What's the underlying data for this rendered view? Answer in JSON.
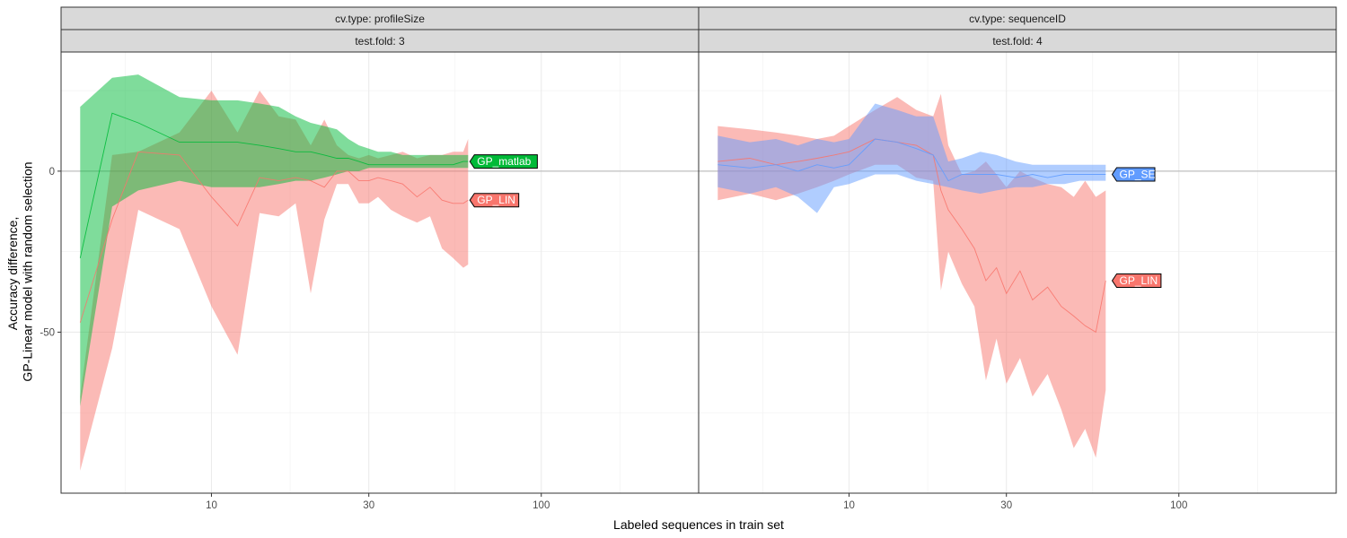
{
  "chart_data": {
    "type": "area",
    "xlabel": "Labeled sequences in train set",
    "ylabel_lines": [
      "Accuracy difference,",
      "GP-Linear model with random selection"
    ],
    "x_scale": "log10",
    "x_ticks": [
      10,
      30,
      100
    ],
    "y_ticks": [
      0,
      -50
    ],
    "xlim": [
      3.5,
      300
    ],
    "ylim": [
      -100,
      37
    ],
    "grid": true,
    "legend": "direct labels at line ends",
    "colors": {
      "GP_LIN": "#F8766D",
      "GP_matlab": "#00BA38",
      "GP_SE": "#619CFF"
    },
    "panels": [
      {
        "strip_top": "cv.type: profileSize",
        "strip_bottom": "test.fold: 3",
        "series": [
          {
            "name": "GP_LIN",
            "x": [
              4,
              5,
              6,
              8,
              10,
              12,
              14,
              16,
              18,
              20,
              22,
              24,
              26,
              28,
              30,
              32,
              35,
              38,
              42,
              46,
              50,
              54,
              58,
              60
            ],
            "y": [
              -47,
              -15,
              6,
              5,
              -8,
              -17,
              -2,
              -3,
              -2,
              -3,
              -5,
              0,
              0,
              -3,
              -3,
              -2,
              -3,
              -4,
              -8,
              -5,
              -9,
              -10,
              -10,
              -9
            ],
            "lower": [
              -93,
              -55,
              -12,
              -18,
              -42,
              -57,
              -13,
              -14,
              -10,
              -38,
              -15,
              -4,
              -4,
              -10,
              -10,
              -8,
              -12,
              -14,
              -16,
              -14,
              -24,
              -27,
              -30,
              -29
            ],
            "upper": [
              -70,
              5,
              6,
              12,
              25,
              12,
              25,
              17,
              16,
              8,
              16,
              8,
              5,
              4,
              5,
              4,
              5,
              6,
              4,
              5,
              5,
              6,
              6,
              10
            ]
          },
          {
            "name": "GP_matlab",
            "x": [
              4,
              5,
              6,
              8,
              10,
              12,
              14,
              16,
              18,
              20,
              22,
              24,
              26,
              28,
              30,
              32,
              35,
              38,
              42,
              46,
              50,
              54,
              58,
              60
            ],
            "y": [
              -27,
              18,
              15,
              9,
              9,
              9,
              8,
              7,
              6,
              6,
              5,
              4,
              4,
              3,
              2,
              2,
              2,
              2,
              2,
              2,
              2,
              2,
              3,
              3
            ],
            "lower": [
              -73,
              -11,
              -6,
              -3,
              -5,
              -5,
              -5,
              -4,
              -3,
              -3,
              -2,
              -1,
              0,
              0,
              1,
              1,
              1,
              1,
              1,
              1,
              1,
              1,
              1,
              1
            ],
            "upper": [
              20,
              29,
              30,
              23,
              22,
              22,
              21,
              20,
              17,
              15,
              14,
              13,
              10,
              8,
              7,
              6,
              6,
              5,
              5,
              5,
              5,
              5,
              5,
              5
            ]
          }
        ],
        "labels": [
          {
            "text": "GP_matlab",
            "x": 60,
            "y": 3
          },
          {
            "text": "GP_LIN",
            "x": 60,
            "y": -9
          }
        ]
      },
      {
        "strip_top": "cv.type: sequenceID",
        "strip_bottom": "test.fold: 4",
        "series": [
          {
            "name": "GP_LIN",
            "x": [
              4,
              5,
              6,
              7,
              8,
              9,
              10,
              12,
              14,
              16,
              18,
              19,
              20,
              22,
              24,
              26,
              28,
              30,
              33,
              36,
              40,
              44,
              48,
              52,
              56,
              60
            ],
            "y": [
              3,
              4,
              2,
              3,
              4,
              5,
              6,
              10,
              9,
              8,
              5,
              -6,
              -12,
              -18,
              -24,
              -34,
              -30,
              -38,
              -31,
              -40,
              -36,
              -42,
              -45,
              -48,
              -50,
              -34
            ],
            "lower": [
              -9,
              -7,
              -9,
              -7,
              -5,
              -3,
              -1,
              2,
              2,
              -2,
              -3,
              -37,
              -25,
              -35,
              -42,
              -65,
              -52,
              -66,
              -58,
              -70,
              -63,
              -74,
              -86,
              -80,
              -89,
              -68
            ],
            "upper": [
              14,
              13,
              12,
              11,
              10,
              11,
              14,
              19,
              23,
              19,
              17,
              24,
              8,
              -1,
              0,
              3,
              -1,
              -5,
              0,
              -2,
              -4,
              -5,
              -8,
              -3,
              -8,
              -6
            ]
          },
          {
            "name": "GP_SE",
            "x": [
              4,
              5,
              6,
              7,
              8,
              9,
              10,
              12,
              14,
              16,
              18,
              20,
              22,
              25,
              28,
              32,
              36,
              40,
              45,
              50,
              55,
              60
            ],
            "y": [
              2,
              1,
              2,
              0,
              2,
              1,
              2,
              10,
              9,
              7,
              5,
              -3,
              -1,
              -1,
              -1,
              -2,
              -1,
              -2,
              -1,
              -1,
              -1,
              -1
            ],
            "lower": [
              -5,
              -7,
              -5,
              -8,
              -13,
              -5,
              -4,
              -1,
              -1,
              -3,
              -4,
              -5,
              -6,
              -7,
              -6,
              -5,
              -5,
              -4,
              -4,
              -3,
              -3,
              -3
            ],
            "upper": [
              11,
              9,
              10,
              8,
              10,
              9,
              10,
              21,
              19,
              17,
              17,
              3,
              4,
              6,
              5,
              3,
              2,
              2,
              2,
              2,
              2,
              2
            ]
          }
        ],
        "labels": [
          {
            "text": "GP_SE",
            "x": 62,
            "y": -1
          },
          {
            "text": "GP_LIN",
            "x": 62,
            "y": -34
          }
        ]
      }
    ]
  }
}
